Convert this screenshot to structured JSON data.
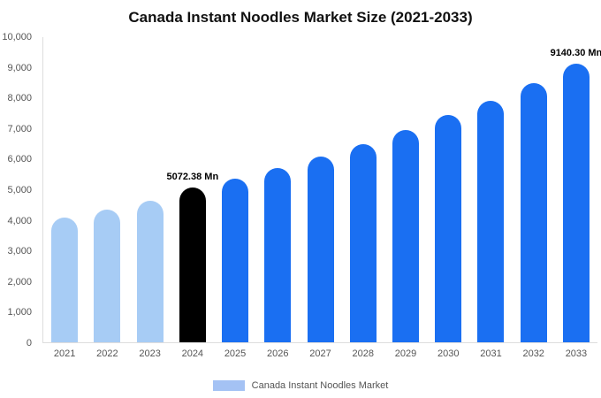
{
  "chart_data": {
    "type": "bar",
    "title": "Canada Instant Noodles Market Size (2021-2033)",
    "legend": "Canada Instant Noodles Market",
    "categories": [
      "2021",
      "2022",
      "2023",
      "2024",
      "2025",
      "2026",
      "2027",
      "2028",
      "2029",
      "2030",
      "2031",
      "2032",
      "2033"
    ],
    "values": [
      4100,
      4350,
      4650,
      5072.38,
      5350,
      5700,
      6100,
      6500,
      6950,
      7450,
      7900,
      8500,
      9140.3
    ],
    "bar_colors": [
      "#a7ccf5",
      "#a7ccf5",
      "#a7ccf5",
      "#000000",
      "#1a6ff2",
      "#1a6ff2",
      "#1a6ff2",
      "#1a6ff2",
      "#1a6ff2",
      "#1a6ff2",
      "#1a6ff2",
      "#1a6ff2",
      "#1a6ff2"
    ],
    "annotations": {
      "2024": "5072.38 Mn",
      "2033": "9140.30 Mn"
    },
    "ylim": [
      0,
      10000
    ],
    "yticks": [
      {
        "value": 0,
        "label": "0"
      },
      {
        "value": 1000,
        "label": "1,000"
      },
      {
        "value": 2000,
        "label": "2,000"
      },
      {
        "value": 3000,
        "label": "3,000"
      },
      {
        "value": 4000,
        "label": "4,000"
      },
      {
        "value": 5000,
        "label": "5,000"
      },
      {
        "value": 6000,
        "label": "6,000"
      },
      {
        "value": 7000,
        "label": "7,000"
      },
      {
        "value": 8000,
        "label": "8,000"
      },
      {
        "value": 9000,
        "label": "9,000"
      },
      {
        "value": 10000,
        "label": "10,000"
      }
    ],
    "colors": {
      "light_blue": "#a7ccf5",
      "dark_blue": "#1a6ff2",
      "black": "#000000",
      "legend_swatch": "#a4c2f4",
      "axis_text": "#555555"
    },
    "grid": false,
    "legend_position": "bottom"
  }
}
